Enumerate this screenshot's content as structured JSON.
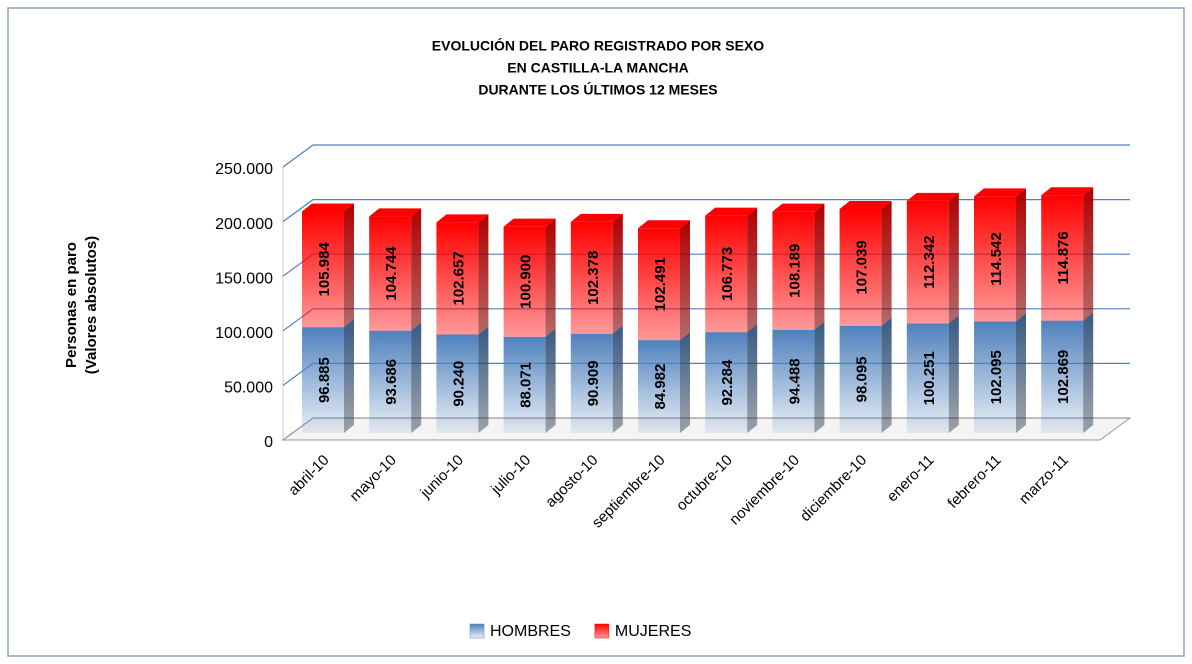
{
  "chart_data": {
    "type": "stacked-bar-3d",
    "title": [
      "EVOLUCIÓN DEL PARO REGISTRADO POR SEXO",
      "EN CASTILLA-LA MANCHA",
      "DURANTE LOS ÚLTIMOS 12 MESES"
    ],
    "ylabel": [
      "Personas en paro",
      "(Valores absolutos)"
    ],
    "categories": [
      "abril-10",
      "mayo-10",
      "junio-10",
      "julio-10",
      "agosto-10",
      "septiembre-10",
      "octubre-10",
      "noviembre-10",
      "diciembre-10",
      "enero-11",
      "febrero-11",
      "marzo-11"
    ],
    "series": [
      {
        "name": "HOMBRES",
        "color": "#4f81bd",
        "values": [
          96885,
          93686,
          90240,
          88071,
          90909,
          84982,
          92284,
          94488,
          98095,
          100251,
          102095,
          102869
        ],
        "value_labels": [
          "96.885",
          "93.686",
          "90.240",
          "88.071",
          "90.909",
          "84.982",
          "92.284",
          "94.488",
          "98.095",
          "100.251",
          "102.095",
          "102.869"
        ]
      },
      {
        "name": "MUJERES",
        "color": "#ff0000",
        "values": [
          105984,
          104744,
          102657,
          100900,
          102378,
          102491,
          106773,
          108189,
          107039,
          112342,
          114542,
          114876
        ],
        "value_labels": [
          "105.984",
          "104.744",
          "102.657",
          "100.900",
          "102.378",
          "102.491",
          "106.773",
          "108.189",
          "107.039",
          "112.342",
          "114.542",
          "114.876"
        ]
      }
    ],
    "ylim": [
      0,
      250000
    ],
    "yticks": [
      0,
      {
        "value": 50000,
        "label": "50.000"
      },
      {
        "value": 100000,
        "label": "100.000"
      },
      {
        "value": 150000,
        "label": "150.000"
      },
      {
        "value": 200000,
        "label": "200.000"
      },
      {
        "value": 250000,
        "label": "250.000"
      }
    ],
    "grid": true,
    "legend": "bottom"
  }
}
